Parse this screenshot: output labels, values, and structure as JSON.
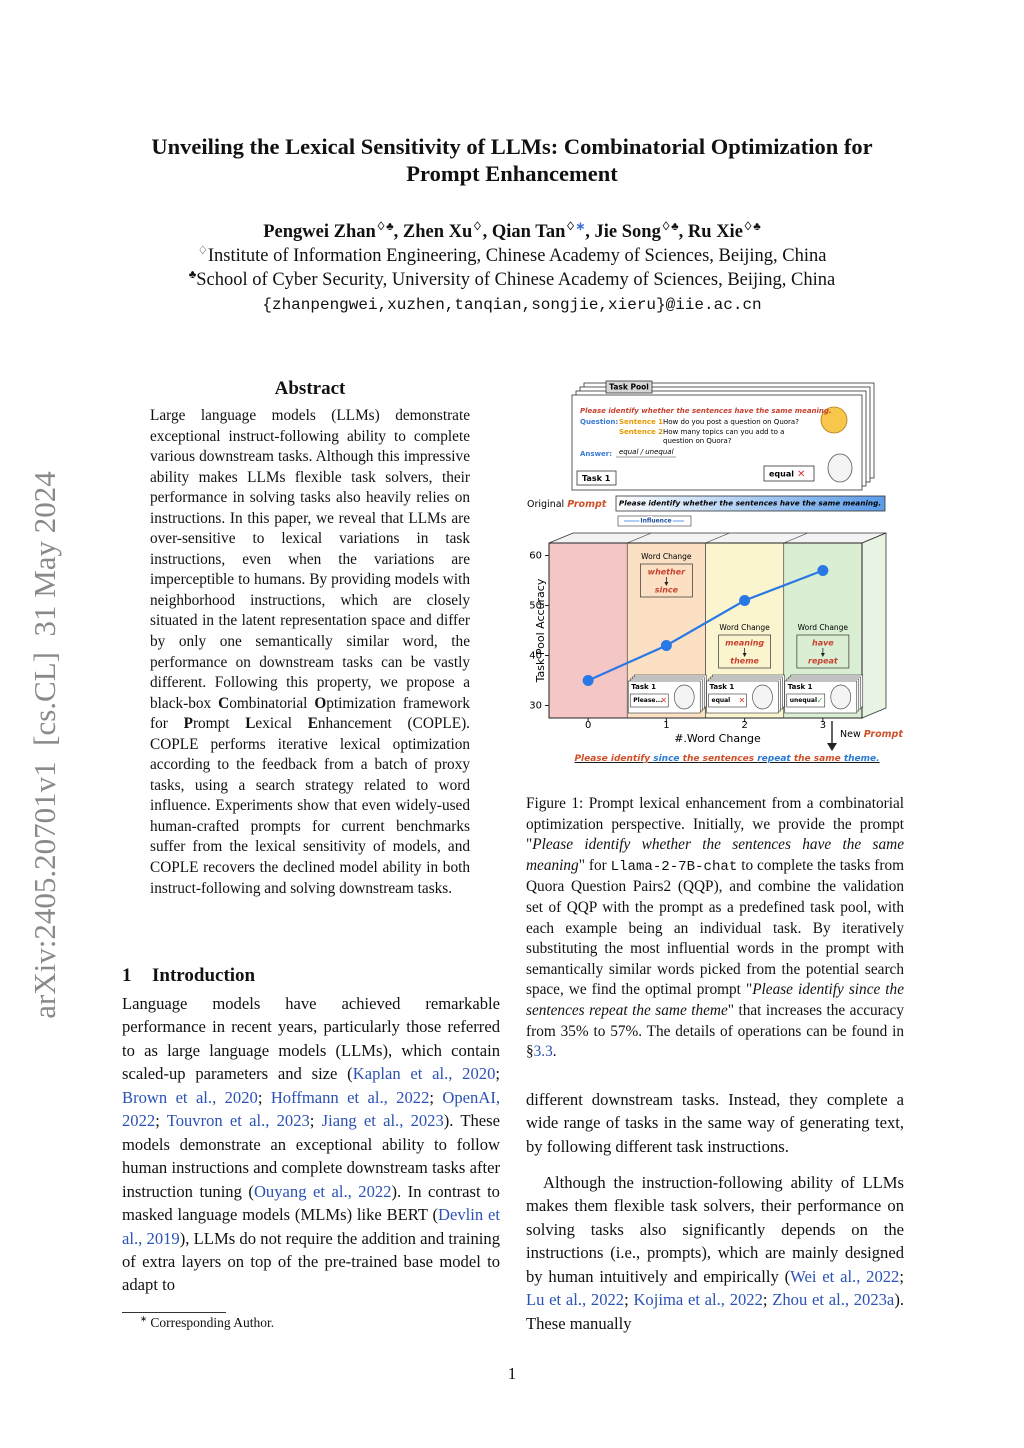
{
  "arxiv_id": "arXiv:2405.20701v1  [cs.CL]  31 May 2024",
  "title": [
    "Unveiling the Lexical Sensitivity of LLMs: Combinatorial Optimization for",
    "Prompt Enhancement"
  ],
  "authors": [
    "Pengwei Zhan",
    {
      "text": "♢♣",
      "style": "sup"
    },
    ", Zhen Xu",
    {
      "text": "♢",
      "style": "sup"
    },
    ", Qian Tan",
    {
      "text": "♢",
      "style": "sup"
    },
    {
      "text": "∗",
      "style": "sup",
      "color": "#3b6fd6"
    },
    ", Jie Song",
    {
      "text": "♢♣",
      "style": "sup"
    },
    ", Ru Xie",
    {
      "text": "♢♣",
      "style": "sup"
    }
  ],
  "affiliations": [
    [
      {
        "text": "♢",
        "style": "sup"
      },
      "Institute of Information Engineering, Chinese Academy of Sciences, Beijing, China"
    ],
    [
      {
        "text": "♣",
        "style": "sup"
      },
      "School of Cyber Security, University of Chinese Academy of Sciences, Beijing, China"
    ]
  ],
  "email": "{zhanpengwei,xuzhen,tanqian,songjie,xieru}@iie.ac.cn",
  "abstract": {
    "heading": "Abstract",
    "text": [
      "Large language models (LLMs) demonstrate exceptional instruct-following ability to complete various downstream tasks. Although this impressive ability makes LLMs flexible task solvers, their performance in solving tasks also heavily relies on instructions. In this paper, we reveal that LLMs are over-sensitive to lexical variations in task instructions, even when the variations are imperceptible to humans. By providing models with neighborhood instructions, which are closely situated in the latent representation space and differ by only one semantically similar word, the performance on downstream tasks can be vastly different. Following this property, we propose a black-box ",
      {
        "text": "C",
        "style": "bold"
      },
      "ombinatorial ",
      {
        "text": "O",
        "style": "bold"
      },
      "ptimization framework for ",
      {
        "text": "P",
        "style": "bold"
      },
      "rompt ",
      {
        "text": "L",
        "style": "bold"
      },
      "exical ",
      {
        "text": "E",
        "style": "bold"
      },
      "nhancement (COPLE). COPLE performs iterative lexical optimization according to the feedback from a batch of proxy tasks, using a search strategy related to word influence. Experiments show that even widely-used human-crafted prompts for current benchmarks suffer from the lexical sensitivity of models, and COPLE recovers the declined model ability in both instruct-following and solving downstream tasks."
    ]
  },
  "section": {
    "number": "1",
    "title": "Introduction"
  },
  "intro_paragraph": [
    "Language models have achieved remarkable performance in recent years, particularly those referred to as large language models (LLMs), which contain scaled-up parameters and size (",
    {
      "text": "Kaplan et al., 2020",
      "style": "link"
    },
    "; ",
    {
      "text": "Brown et al., 2020",
      "style": "link"
    },
    "; ",
    {
      "text": "Hoffmann et al., 2022",
      "style": "link"
    },
    "; ",
    {
      "text": "OpenAI, 2022",
      "style": "link"
    },
    "; ",
    {
      "text": "Touvron et al., 2023",
      "style": "link"
    },
    "; ",
    {
      "text": "Jiang et al., 2023",
      "style": "link"
    },
    "). These models demonstrate an exceptional ability to follow human instructions and complete downstream tasks after instruction tuning (",
    {
      "text": "Ouyang et al., 2022",
      "style": "link"
    },
    "). In contrast to masked language models (MLMs) like BERT (",
    {
      "text": "Devlin et al., 2019",
      "style": "link"
    },
    "), LLMs do not require the addition and training of extra layers on top of the pre-trained base model to adapt to"
  ],
  "footnote": [
    {
      "text": "∗",
      "style": "sup"
    },
    " Corresponding Author."
  ],
  "figure": {
    "task_pool_label": "Task Pool",
    "instruction": "Please identify whether the sentences have the same meaning.",
    "question_label": "Question:",
    "sentence1_label": "Sentence 1",
    "sentence1": "How do you post a question on Quora?",
    "sentence2_label": "Sentence 2",
    "sentence2": [
      "How many topics can you add to a",
      "question on Quora?"
    ],
    "answer_label": "Answer:",
    "answer": "equal / unequal",
    "task": "Task 1",
    "result": "equal",
    "result_mark": "✕",
    "original_prompt": [
      "Original ",
      {
        "text": "Prompt",
        "style": "bold italic",
        "color": "#d0502a"
      }
    ],
    "prompt_box": "Please identify whether the sentences have the same meaning.",
    "influence": "Influence",
    "new_prompt": [
      "New ",
      {
        "text": "Prompt",
        "style": "bold italic",
        "color": "#d0502a"
      }
    ],
    "final_prompt": [
      {
        "text": "Please identify ",
        "color": "#d0502a"
      },
      {
        "text": "since",
        "color": "#2a7ad6"
      },
      {
        "text": " the sentences ",
        "color": "#d0502a"
      },
      {
        "text": "repeat",
        "color": "#2a7ad6"
      },
      {
        "text": " the same ",
        "color": "#d0502a"
      },
      {
        "text": "theme.",
        "color": "#2a7ad6"
      }
    ]
  },
  "chart_data": {
    "type": "line",
    "x": [
      0,
      1,
      2,
      3
    ],
    "values": [
      35,
      42,
      51,
      57
    ],
    "color": "#2a78e4",
    "xlim": [
      -0.5,
      3.5
    ],
    "ylim": [
      27.5,
      62.5
    ],
    "xticks": [
      0,
      1,
      2,
      3
    ],
    "yticks": [
      30,
      40,
      50,
      60
    ],
    "xlabel": "#.Word Change",
    "ylabel": "Task Pool Accuracy",
    "band_colors": [
      "#f5c6c6",
      "#fbe0c4",
      "#fbf5cf",
      "#d9eed3"
    ],
    "annotations": [
      {
        "title": "Word Change",
        "from": "whether",
        "to": "since"
      },
      {
        "title": "Word Change",
        "from": "meaning",
        "to": "theme"
      },
      {
        "title": "Word Change",
        "from": "have",
        "to": "repeat"
      }
    ],
    "task_cards": [
      {
        "task": "Task 1",
        "answer": "Please...",
        "mark": "✕",
        "mark_color": "#d9362b"
      },
      {
        "task": "Task 1",
        "answer": "equal",
        "mark": "✕",
        "mark_color": "#d9362b"
      },
      {
        "task": "Task 1",
        "answer": "unequal",
        "mark": "✓",
        "mark_color": "#3aa84a"
      }
    ]
  },
  "caption": [
    "Figure 1: Prompt lexical enhancement from a combinatorial optimization perspective. Initially, we provide the prompt \"",
    {
      "text": "Please identify whether the sentences have the same meaning",
      "style": "italic"
    },
    "\" for ",
    {
      "text": "Llama-2-7B-chat",
      "style": "mono"
    },
    " to complete the tasks from Quora Question Pairs2 (QQP), and combine the validation set of QQP with the prompt as a predefined task pool, with each example being an individual task. By iteratively substituting the most influential words in the prompt with semantically similar words picked from the potential search space, we find the optimal prompt \"",
    {
      "text": "Please identify since the sentences repeat the same theme",
      "style": "italic"
    },
    "\" that increases the accuracy from 35% to 57%. The details of operations can be found in §",
    {
      "text": "3.3",
      "style": "link"
    },
    "."
  ],
  "right_paragraphs": [
    [
      "different downstream tasks. Instead, they complete a wide range of tasks in the same way of generating text, by following different task instructions."
    ],
    [
      "Although the instruction-following ability of LLMs makes them flexible task solvers, their performance on solving tasks also significantly depends on the instructions (i.e., prompts), which are mainly designed by human intuitively and empirically (",
      {
        "text": "Wei et al., 2022",
        "style": "link"
      },
      "; ",
      {
        "text": "Lu et al., 2022",
        "style": "link"
      },
      "; ",
      {
        "text": "Kojima et al., 2022",
        "style": "link"
      },
      "; ",
      {
        "text": "Zhou et al., 2023a",
        "style": "link"
      },
      "). These manually"
    ]
  ],
  "page_number": "1"
}
